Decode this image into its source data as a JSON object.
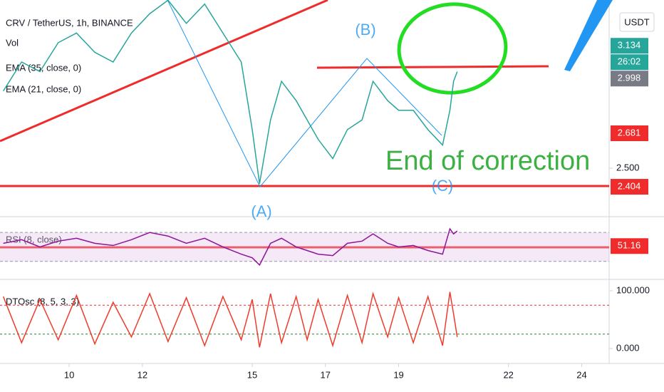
{
  "chart_data": [
    {
      "type": "line",
      "title": "CRV / TetherUS, 1h, BINANCE",
      "indicators": [
        "Vol",
        "EMA (35, close, 0)",
        "EMA (21, close, 0)"
      ],
      "currency": "USDT",
      "x": [
        8.2,
        8.7,
        9.2,
        9.7,
        10.2,
        10.7,
        11.2,
        11.7,
        12.2,
        12.7,
        13.2,
        13.7,
        14.2,
        14.7,
        15.0,
        15.2,
        15.5,
        15.8,
        16.2,
        16.5,
        16.8,
        17.2,
        17.6,
        18.0,
        18.3,
        18.7,
        19.0,
        19.4,
        19.8,
        20.2,
        20.4,
        20.5,
        20.6
      ],
      "series": [
        {
          "color": "#26a69a",
          "values": [
            2.9,
            3.05,
            3.0,
            3.15,
            3.2,
            3.1,
            3.05,
            3.2,
            3.3,
            3.37,
            3.25,
            3.35,
            3.2,
            3.05,
            2.7,
            2.42,
            2.75,
            2.95,
            2.85,
            2.75,
            2.65,
            2.55,
            2.7,
            2.75,
            2.95,
            2.85,
            2.8,
            2.8,
            2.7,
            2.62,
            2.8,
            2.95,
            3.0
          ]
        }
      ],
      "xlim": [
        8.11,
        24.75
      ],
      "xticks": [
        10,
        12,
        15,
        17,
        19,
        22,
        24
      ],
      "ylim": [
        2.264,
        3.371
      ],
      "yticks": [
        {
          "value": 2.5,
          "label": "2.500"
        }
      ],
      "price_tags": [
        {
          "value": 3.134,
          "label": "3.134",
          "color": "#26a69a"
        },
        {
          "value": 2.998,
          "label": "2.998",
          "color": "#787b86"
        },
        {
          "value": 2.681,
          "label": "2.681",
          "color": "#ef2b2b"
        },
        {
          "value": 2.404,
          "label": "2.404",
          "color": "#ef2b2b"
        }
      ],
      "countdown": "26:02",
      "annotations": [
        "(A)",
        "(B)",
        "(C)",
        "End of correction"
      ]
    },
    {
      "type": "line",
      "title": "RSI (8, close)",
      "x": [
        8.2,
        8.7,
        9.2,
        9.7,
        10.2,
        10.7,
        11.2,
        11.7,
        12.2,
        12.7,
        13.2,
        13.7,
        14.2,
        14.7,
        15.0,
        15.2,
        15.5,
        15.8,
        16.2,
        16.5,
        16.8,
        17.2,
        17.6,
        18.0,
        18.3,
        18.7,
        19.0,
        19.4,
        19.8,
        20.2,
        20.4,
        20.5,
        20.6
      ],
      "series": [
        {
          "color": "#8e1599",
          "values": [
            55,
            60,
            50,
            58,
            62,
            55,
            52,
            60,
            70,
            65,
            55,
            62,
            50,
            40,
            35,
            25,
            55,
            62,
            50,
            45,
            40,
            38,
            55,
            58,
            68,
            55,
            50,
            52,
            45,
            40,
            75,
            68,
            72
          ]
        }
      ],
      "ylim": [
        12,
        80
      ],
      "bands": [
        30,
        70
      ],
      "price_tags": [
        {
          "value": 51.16,
          "label": "51.16",
          "color": "#ef2b2b"
        }
      ]
    },
    {
      "type": "line",
      "title": "DTOsc (8, 5, 3, 3)",
      "x": [
        8.2,
        8.7,
        9.2,
        9.7,
        10.2,
        10.7,
        11.2,
        11.7,
        12.2,
        12.7,
        13.2,
        13.7,
        14.2,
        14.7,
        15.0,
        15.2,
        15.5,
        15.8,
        16.2,
        16.5,
        16.8,
        17.2,
        17.6,
        18.0,
        18.3,
        18.7,
        19.0,
        19.4,
        19.8,
        20.2,
        20.4,
        20.5,
        20.6
      ],
      "series": [
        {
          "color": "#ef3b2c",
          "values": [
            90,
            10,
            85,
            15,
            92,
            8,
            80,
            20,
            95,
            12,
            88,
            5,
            90,
            15,
            85,
            2,
            95,
            10,
            90,
            15,
            85,
            5,
            92,
            10,
            95,
            20,
            88,
            10,
            90,
            5,
            98,
            60,
            20
          ]
        }
      ],
      "ylim": [
        -26,
        116
      ],
      "yticks": [
        {
          "value": 100,
          "label": "100.000"
        },
        {
          "value": 0,
          "label": "0.000"
        }
      ],
      "levels": [
        25,
        75
      ]
    }
  ]
}
